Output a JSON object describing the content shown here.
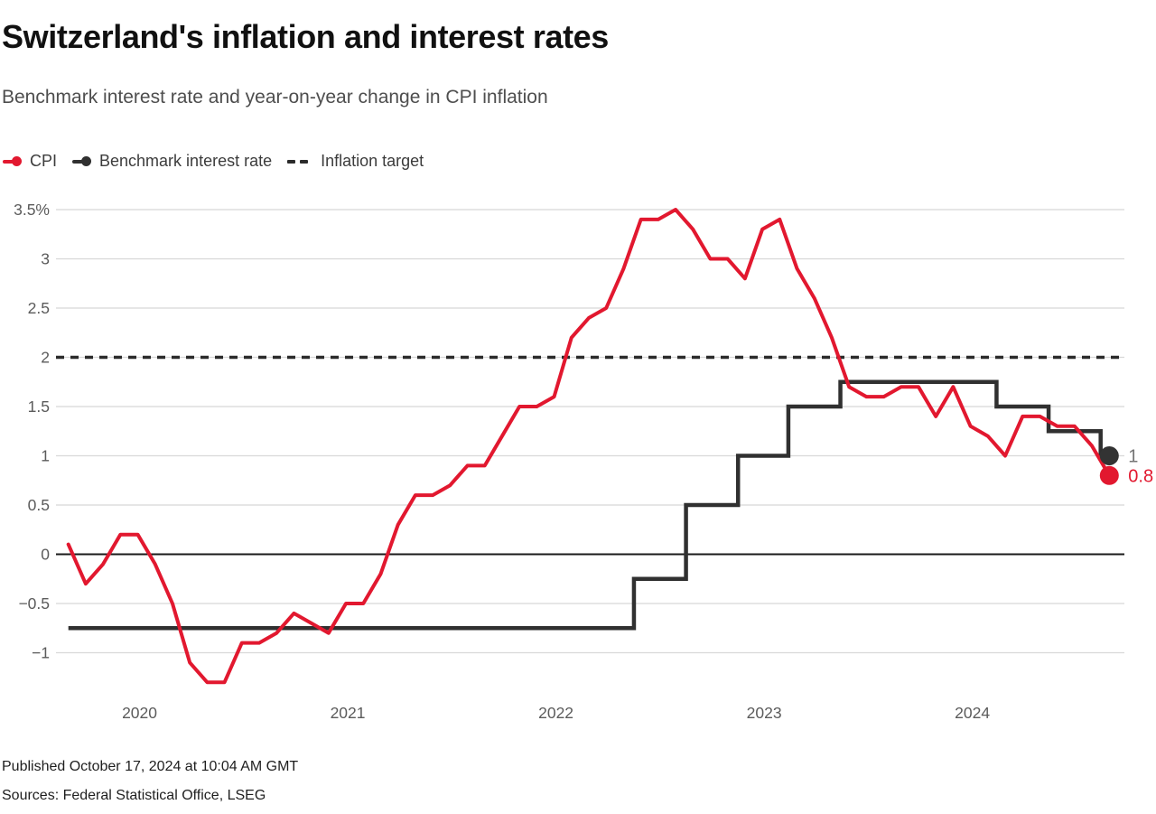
{
  "header": {
    "title": "Switzerland's inflation and interest rates",
    "subtitle": "Benchmark interest rate and year-on-year change in CPI inflation"
  },
  "legend": {
    "items": [
      {
        "label": "CPI",
        "marker": "line-dot",
        "color": "#e2182f"
      },
      {
        "label": "Benchmark interest rate",
        "marker": "line-dot",
        "color": "#303030"
      },
      {
        "label": "Inflation target",
        "marker": "dashes",
        "color": "#2b2b2b"
      }
    ]
  },
  "footer": {
    "published": "Published October 17, 2024 at 10:04 AM GMT",
    "sources": "Sources: Federal Statistical Office, LSEG"
  },
  "colors": {
    "cpi_red": "#e2182f",
    "benchmark_dark": "#303030",
    "end_dot_dark": "#333333",
    "grid": "#d8d8d8",
    "zero_line": "#1a1a1a",
    "tick_text": "#5b5b5b",
    "end_label_gray": "#757575"
  },
  "chart_data": {
    "type": "line",
    "title": "Switzerland's inflation and interest rates",
    "subtitle": "Benchmark interest rate and year-on-year change in CPI inflation",
    "unit": "percent",
    "frequency": "monthly",
    "x_start": "2019-09",
    "x_end": "2024-09",
    "grid": true,
    "legend_position": "top-left",
    "ylim": [
      -1.45,
      3.6
    ],
    "y_ticks": [
      {
        "value": 3.5,
        "label": "3.5%"
      },
      {
        "value": 3,
        "label": "3"
      },
      {
        "value": 2.5,
        "label": "2.5"
      },
      {
        "value": 2,
        "label": "2"
      },
      {
        "value": 1.5,
        "label": "1.5"
      },
      {
        "value": 1,
        "label": "1"
      },
      {
        "value": 0.5,
        "label": "0.5"
      },
      {
        "value": 0,
        "label": "0"
      },
      {
        "value": -0.5,
        "label": "−0.5"
      },
      {
        "value": -1,
        "label": "−1"
      }
    ],
    "x_ticks": [
      {
        "label": "2020",
        "month_index": 4
      },
      {
        "label": "2021",
        "month_index": 16
      },
      {
        "label": "2022",
        "month_index": 28
      },
      {
        "label": "2023",
        "month_index": 40
      },
      {
        "label": "2024",
        "month_index": 52
      }
    ],
    "series": [
      {
        "name": "CPI",
        "kind": "line",
        "color": "#e2182f",
        "start_month": "2019-09",
        "values": [
          0.1,
          -0.3,
          -0.1,
          0.2,
          0.2,
          -0.1,
          -0.5,
          -1.1,
          -1.3,
          -1.3,
          -0.9,
          -0.9,
          -0.8,
          -0.6,
          -0.7,
          -0.8,
          -0.5,
          -0.5,
          -0.2,
          0.3,
          0.6,
          0.6,
          0.7,
          0.9,
          0.9,
          1.2,
          1.5,
          1.5,
          1.6,
          2.2,
          2.4,
          2.5,
          2.9,
          3.4,
          3.4,
          3.5,
          3.3,
          3.0,
          3.0,
          2.8,
          3.3,
          3.4,
          2.9,
          2.6,
          2.2,
          1.7,
          1.6,
          1.6,
          1.7,
          1.7,
          1.4,
          1.7,
          1.3,
          1.2,
          1.0,
          1.4,
          1.4,
          1.3,
          1.3,
          1.1,
          0.8
        ],
        "end_value": 0.8,
        "end_label": "0.8"
      },
      {
        "name": "Benchmark interest rate",
        "kind": "step",
        "color": "#303030",
        "steps": [
          {
            "date": "2019-09",
            "month_index": 0,
            "value": -0.75
          },
          {
            "date": "2022-06",
            "month_index": 32.6,
            "value": -0.25
          },
          {
            "date": "2022-09",
            "month_index": 35.6,
            "value": 0.5
          },
          {
            "date": "2022-12",
            "month_index": 38.6,
            "value": 1.0
          },
          {
            "date": "2023-03",
            "month_index": 41.5,
            "value": 1.5
          },
          {
            "date": "2023-06",
            "month_index": 44.5,
            "value": 1.75
          },
          {
            "date": "2024-03",
            "month_index": 53.5,
            "value": 1.5
          },
          {
            "date": "2024-06",
            "month_index": 56.5,
            "value": 1.25
          },
          {
            "date": "2024-09",
            "month_index": 59.5,
            "value": 1.0
          }
        ],
        "end_month_index": 60,
        "end_value": 1.0,
        "end_label": "1"
      },
      {
        "name": "Inflation target",
        "kind": "dashed-hline",
        "color": "#2b2b2b",
        "value": 2
      }
    ]
  }
}
